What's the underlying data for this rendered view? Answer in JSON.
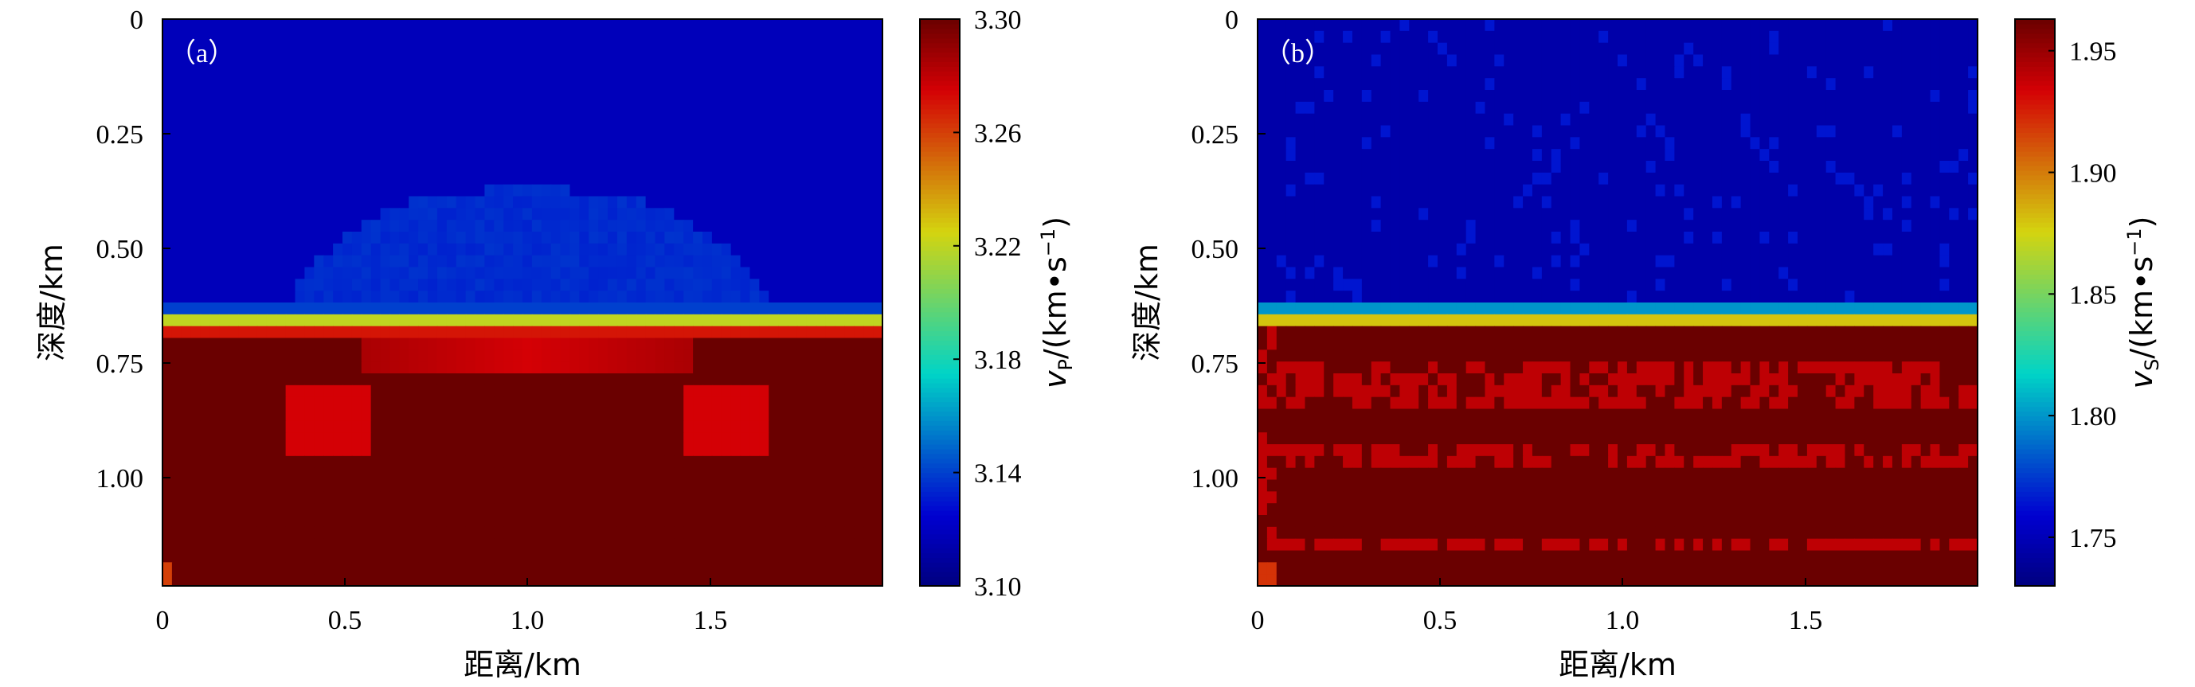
{
  "chart_data": [
    {
      "type": "heatmap",
      "panel_label": "（a）",
      "xlabel": "距离/km",
      "ylabel": "深度/km",
      "x_ticks": [
        "0",
        "0.5",
        "1.0",
        "1.5"
      ],
      "y_ticks": [
        "0",
        "0.25",
        "0.50",
        "0.75",
        "1.00"
      ],
      "xlim": [
        0,
        1.97
      ],
      "ylim": [
        0,
        1.23
      ],
      "y_inverted": true,
      "colorbar": {
        "label_italic": "v",
        "label_sub": "P",
        "label_rest": "/(km•s",
        "label_sup": "−1",
        "label_close": ")",
        "ticks": [
          "3.10",
          "3.14",
          "3.18",
          "3.22",
          "3.26",
          "3.30"
        ],
        "range": [
          3.1,
          3.3
        ],
        "colormap": "jet"
      },
      "field": {
        "background": 3.118,
        "interface_depth": 0.64,
        "lower_value": 3.3,
        "anomalies": [
          {
            "kind": "upper_low_velocity_dome",
            "x_range": [
              0.35,
              1.65
            ],
            "top_depth": 0.37,
            "value": 3.135
          },
          {
            "kind": "interface_transition",
            "depths": [
              0.615,
              0.63,
              0.645,
              0.66,
              0.675
            ],
            "values": [
              3.14,
              3.17,
              3.22,
              3.245,
              3.27
            ]
          },
          {
            "kind": "lens_left",
            "x": [
              0.33,
              0.58
            ],
            "depth": [
              0.8,
              0.95
            ],
            "value": 3.275
          },
          {
            "kind": "lens_right",
            "x": [
              1.42,
              1.65
            ],
            "depth": [
              0.8,
              0.95
            ],
            "value": 3.275
          }
        ]
      }
    },
    {
      "type": "heatmap",
      "panel_label": "（b）",
      "xlabel": "距离/km",
      "ylabel": "深度/km",
      "x_ticks": [
        "0",
        "0.5",
        "1.0",
        "1.5"
      ],
      "y_ticks": [
        "0",
        "0.25",
        "0.50",
        "0.75",
        "1.00"
      ],
      "xlim": [
        0,
        1.97
      ],
      "ylim": [
        0,
        1.23
      ],
      "y_inverted": true,
      "colorbar": {
        "label_italic": "v",
        "label_sub": "S",
        "label_rest": "/(km•s",
        "label_sup": "−1",
        "label_close": ")",
        "ticks": [
          "1.75",
          "1.80",
          "1.85",
          "1.90",
          "1.95"
        ],
        "tick_values": [
          1.75,
          1.8,
          1.85,
          1.9,
          1.95
        ],
        "range": [
          1.73,
          1.963
        ],
        "colormap": "jet"
      },
      "field": {
        "background": 1.745,
        "interface_depth": 0.64,
        "lower_value": 1.963,
        "anomalies": [
          {
            "kind": "interface_band",
            "depths": [
              0.625,
              0.64
            ],
            "values": [
              1.8,
              1.88
            ]
          },
          {
            "kind": "horizontal_striations",
            "depths": [
              0.77,
              0.82,
              0.96,
              1.14
            ],
            "value": 1.94
          }
        ]
      }
    }
  ]
}
